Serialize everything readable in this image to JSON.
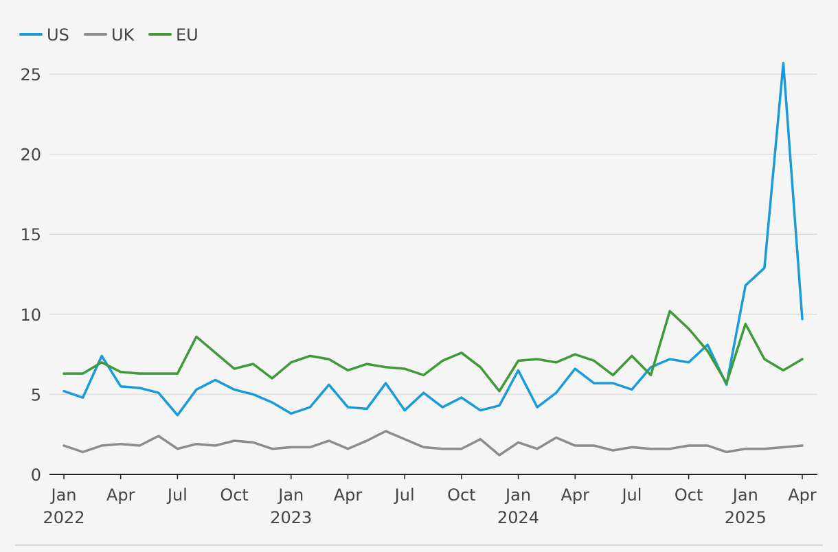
{
  "chart_data": {
    "type": "line",
    "title": "",
    "xlabel": "",
    "ylabel": "",
    "ylim": [
      0,
      27
    ],
    "yticks": [
      0,
      5,
      10,
      15,
      20,
      25
    ],
    "grid": "horizontal",
    "legend": "top-left",
    "x": [
      "2022-01",
      "2022-02",
      "2022-03",
      "2022-04",
      "2022-05",
      "2022-06",
      "2022-07",
      "2022-08",
      "2022-09",
      "2022-10",
      "2022-11",
      "2022-12",
      "2023-01",
      "2023-02",
      "2023-03",
      "2023-04",
      "2023-05",
      "2023-06",
      "2023-07",
      "2023-08",
      "2023-09",
      "2023-10",
      "2023-11",
      "2023-12",
      "2024-01",
      "2024-02",
      "2024-03",
      "2024-04",
      "2024-05",
      "2024-06",
      "2024-07",
      "2024-08",
      "2024-09",
      "2024-10",
      "2024-11",
      "2024-12",
      "2025-01",
      "2025-02",
      "2025-03",
      "2025-04"
    ],
    "xticks": [
      {
        "month": "Jan",
        "year": "2022",
        "index": 0
      },
      {
        "month": "Apr",
        "year": "",
        "index": 3
      },
      {
        "month": "Jul",
        "year": "",
        "index": 6
      },
      {
        "month": "Oct",
        "year": "",
        "index": 9
      },
      {
        "month": "Jan",
        "year": "2023",
        "index": 12
      },
      {
        "month": "Apr",
        "year": "",
        "index": 15
      },
      {
        "month": "Jul",
        "year": "",
        "index": 18
      },
      {
        "month": "Oct",
        "year": "",
        "index": 21
      },
      {
        "month": "Jan",
        "year": "2024",
        "index": 24
      },
      {
        "month": "Apr",
        "year": "",
        "index": 27
      },
      {
        "month": "Jul",
        "year": "",
        "index": 30
      },
      {
        "month": "Oct",
        "year": "",
        "index": 33
      },
      {
        "month": "Jan",
        "year": "2025",
        "index": 36
      },
      {
        "month": "Apr",
        "year": "",
        "index": 39
      }
    ],
    "series": [
      {
        "name": "US",
        "color": "#1a9bd7",
        "values": [
          5.2,
          4.8,
          7.4,
          5.5,
          5.4,
          5.1,
          3.7,
          5.3,
          5.9,
          5.3,
          5.0,
          4.5,
          3.8,
          4.2,
          5.6,
          4.2,
          4.1,
          5.7,
          4.0,
          5.1,
          4.2,
          4.8,
          4.0,
          4.3,
          6.5,
          4.2,
          5.1,
          6.6,
          5.7,
          5.7,
          5.3,
          6.7,
          7.2,
          7.0,
          8.1,
          5.6,
          11.8,
          12.9,
          25.7,
          9.7
        ]
      },
      {
        "name": "UK",
        "color": "#8c8c8c",
        "values": [
          1.8,
          1.4,
          1.8,
          1.9,
          1.8,
          2.4,
          1.6,
          1.9,
          1.8,
          2.1,
          2.0,
          1.6,
          1.7,
          1.7,
          2.1,
          1.6,
          2.1,
          2.7,
          2.2,
          1.7,
          1.6,
          1.6,
          2.2,
          1.2,
          2.0,
          1.6,
          2.3,
          1.8,
          1.8,
          1.5,
          1.7,
          1.6,
          1.6,
          1.8,
          1.8,
          1.4,
          1.6,
          1.6,
          1.7,
          1.8
        ]
      },
      {
        "name": "EU",
        "color": "#3d9a36",
        "values": [
          6.3,
          6.3,
          7.0,
          6.4,
          6.3,
          6.3,
          6.3,
          8.6,
          7.6,
          6.6,
          6.9,
          6.0,
          7.0,
          7.4,
          7.2,
          6.5,
          6.9,
          6.7,
          6.6,
          6.2,
          7.1,
          7.6,
          6.7,
          5.2,
          7.1,
          7.2,
          7.0,
          7.5,
          7.1,
          6.2,
          7.4,
          6.2,
          10.2,
          9.1,
          7.7,
          5.7,
          9.4,
          7.2,
          6.5,
          7.2
        ]
      }
    ]
  }
}
